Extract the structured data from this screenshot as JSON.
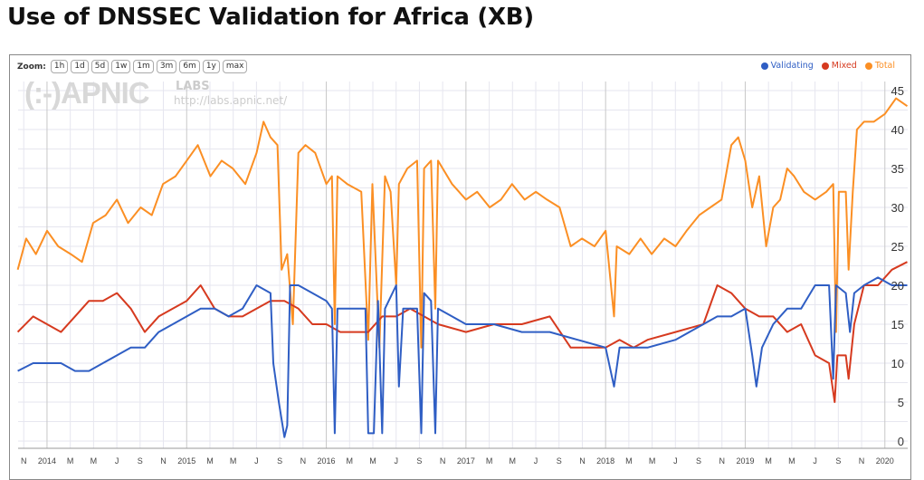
{
  "title": "Use of DNSSEC Validation for Africa (XB)",
  "zoom": {
    "label": "Zoom:",
    "buttons": [
      "1h",
      "1d",
      "5d",
      "1w",
      "1m",
      "3m",
      "6m",
      "1y",
      "max"
    ]
  },
  "watermark": {
    "logo": "(:-)APNIC",
    "labs": "LABS",
    "url": "http://labs.apnic.net/"
  },
  "chart_data": {
    "type": "line",
    "title": "Use of DNSSEC Validation for Africa (XB)",
    "xlabel": "",
    "ylabel": "",
    "xlim": [
      2013.79,
      2020.16
    ],
    "ylim": [
      0,
      46
    ],
    "y_ticks": [
      0,
      5,
      10,
      15,
      20,
      25,
      30,
      35,
      40,
      45
    ],
    "x_tick_start": 2013.833,
    "x_tick_step_years": 0.16667,
    "x_tick_labels": [
      "N",
      "2014",
      "M",
      "M",
      "J",
      "S",
      "N",
      "2015",
      "M",
      "M",
      "J",
      "S",
      "N",
      "2016",
      "M",
      "M",
      "J",
      "S",
      "N",
      "2017",
      "M",
      "M",
      "J",
      "S",
      "N",
      "2018",
      "M",
      "M",
      "J",
      "S",
      "N",
      "2019",
      "M",
      "M",
      "J",
      "S",
      "N",
      "2020"
    ],
    "grid": true,
    "legend_position": "top-right",
    "series": [
      {
        "name": "Validating",
        "color": "#2f5ec4",
        "points": [
          [
            2013.79,
            9
          ],
          [
            2013.9,
            10
          ],
          [
            2014.0,
            10
          ],
          [
            2014.1,
            10
          ],
          [
            2014.2,
            9
          ],
          [
            2014.3,
            9
          ],
          [
            2014.4,
            10
          ],
          [
            2014.5,
            11
          ],
          [
            2014.6,
            12
          ],
          [
            2014.7,
            12
          ],
          [
            2014.8,
            14
          ],
          [
            2014.9,
            15
          ],
          [
            2015.0,
            16
          ],
          [
            2015.1,
            17
          ],
          [
            2015.2,
            17
          ],
          [
            2015.3,
            16
          ],
          [
            2015.4,
            17
          ],
          [
            2015.5,
            20
          ],
          [
            2015.6,
            19
          ],
          [
            2015.62,
            10
          ],
          [
            2015.66,
            5
          ],
          [
            2015.7,
            0.5
          ],
          [
            2015.72,
            2
          ],
          [
            2015.74,
            20
          ],
          [
            2015.8,
            20
          ],
          [
            2015.9,
            19
          ],
          [
            2016.0,
            18
          ],
          [
            2016.04,
            17
          ],
          [
            2016.06,
            1
          ],
          [
            2016.08,
            17
          ],
          [
            2016.2,
            17
          ],
          [
            2016.28,
            17
          ],
          [
            2016.3,
            1
          ],
          [
            2016.34,
            1
          ],
          [
            2016.37,
            18
          ],
          [
            2016.4,
            1
          ],
          [
            2016.42,
            17
          ],
          [
            2016.5,
            20
          ],
          [
            2016.52,
            7
          ],
          [
            2016.55,
            17
          ],
          [
            2016.65,
            17
          ],
          [
            2016.68,
            1
          ],
          [
            2016.7,
            19
          ],
          [
            2016.75,
            18
          ],
          [
            2016.78,
            1
          ],
          [
            2016.8,
            17
          ],
          [
            2016.9,
            16
          ],
          [
            2017.0,
            15
          ],
          [
            2017.2,
            15
          ],
          [
            2017.4,
            14
          ],
          [
            2017.6,
            14
          ],
          [
            2017.8,
            13
          ],
          [
            2018.0,
            12
          ],
          [
            2018.06,
            7
          ],
          [
            2018.1,
            12
          ],
          [
            2018.3,
            12
          ],
          [
            2018.5,
            13
          ],
          [
            2018.7,
            15
          ],
          [
            2018.8,
            16
          ],
          [
            2018.9,
            16
          ],
          [
            2019.0,
            17
          ],
          [
            2019.05,
            11
          ],
          [
            2019.08,
            7
          ],
          [
            2019.12,
            12
          ],
          [
            2019.2,
            15
          ],
          [
            2019.3,
            17
          ],
          [
            2019.4,
            17
          ],
          [
            2019.5,
            20
          ],
          [
            2019.6,
            20
          ],
          [
            2019.63,
            8
          ],
          [
            2019.65,
            20
          ],
          [
            2019.72,
            19
          ],
          [
            2019.75,
            14
          ],
          [
            2019.78,
            19
          ],
          [
            2019.85,
            20
          ],
          [
            2019.95,
            21
          ],
          [
            2020.05,
            20
          ],
          [
            2020.16,
            20
          ]
        ]
      },
      {
        "name": "Mixed",
        "color": "#d63a1f",
        "points": [
          [
            2013.79,
            14
          ],
          [
            2013.9,
            16
          ],
          [
            2014.0,
            15
          ],
          [
            2014.1,
            14
          ],
          [
            2014.2,
            16
          ],
          [
            2014.3,
            18
          ],
          [
            2014.4,
            18
          ],
          [
            2014.5,
            19
          ],
          [
            2014.6,
            17
          ],
          [
            2014.7,
            14
          ],
          [
            2014.8,
            16
          ],
          [
            2014.9,
            17
          ],
          [
            2015.0,
            18
          ],
          [
            2015.1,
            20
          ],
          [
            2015.2,
            17
          ],
          [
            2015.3,
            16
          ],
          [
            2015.4,
            16
          ],
          [
            2015.5,
            17
          ],
          [
            2015.6,
            18
          ],
          [
            2015.7,
            18
          ],
          [
            2015.8,
            17
          ],
          [
            2015.9,
            15
          ],
          [
            2016.0,
            15
          ],
          [
            2016.1,
            14
          ],
          [
            2016.2,
            14
          ],
          [
            2016.3,
            14
          ],
          [
            2016.4,
            16
          ],
          [
            2016.5,
            16
          ],
          [
            2016.6,
            17
          ],
          [
            2016.7,
            16
          ],
          [
            2016.8,
            15
          ],
          [
            2017.0,
            14
          ],
          [
            2017.2,
            15
          ],
          [
            2017.4,
            15
          ],
          [
            2017.6,
            16
          ],
          [
            2017.75,
            12
          ],
          [
            2017.9,
            12
          ],
          [
            2018.0,
            12
          ],
          [
            2018.1,
            13
          ],
          [
            2018.2,
            12
          ],
          [
            2018.3,
            13
          ],
          [
            2018.5,
            14
          ],
          [
            2018.7,
            15
          ],
          [
            2018.8,
            20
          ],
          [
            2018.9,
            19
          ],
          [
            2019.0,
            17
          ],
          [
            2019.1,
            16
          ],
          [
            2019.2,
            16
          ],
          [
            2019.3,
            14
          ],
          [
            2019.4,
            15
          ],
          [
            2019.5,
            11
          ],
          [
            2019.6,
            10
          ],
          [
            2019.64,
            5
          ],
          [
            2019.66,
            11
          ],
          [
            2019.72,
            11
          ],
          [
            2019.74,
            8
          ],
          [
            2019.78,
            15
          ],
          [
            2019.85,
            20
          ],
          [
            2019.95,
            20
          ],
          [
            2020.05,
            22
          ],
          [
            2020.16,
            23
          ]
        ]
      },
      {
        "name": "Total",
        "color": "#fb8f24",
        "points": [
          [
            2013.79,
            22
          ],
          [
            2013.85,
            26
          ],
          [
            2013.92,
            24
          ],
          [
            2014.0,
            27
          ],
          [
            2014.08,
            25
          ],
          [
            2014.17,
            24
          ],
          [
            2014.25,
            23
          ],
          [
            2014.33,
            28
          ],
          [
            2014.42,
            29
          ],
          [
            2014.5,
            31
          ],
          [
            2014.58,
            28
          ],
          [
            2014.67,
            30
          ],
          [
            2014.75,
            29
          ],
          [
            2014.83,
            33
          ],
          [
            2014.92,
            34
          ],
          [
            2015.0,
            36
          ],
          [
            2015.08,
            38
          ],
          [
            2015.17,
            34
          ],
          [
            2015.25,
            36
          ],
          [
            2015.33,
            35
          ],
          [
            2015.42,
            33
          ],
          [
            2015.5,
            37
          ],
          [
            2015.55,
            41
          ],
          [
            2015.6,
            39
          ],
          [
            2015.65,
            38
          ],
          [
            2015.68,
            22
          ],
          [
            2015.72,
            24
          ],
          [
            2015.76,
            15
          ],
          [
            2015.8,
            37
          ],
          [
            2015.85,
            38
          ],
          [
            2015.92,
            37
          ],
          [
            2016.0,
            33
          ],
          [
            2016.04,
            34
          ],
          [
            2016.06,
            15
          ],
          [
            2016.08,
            34
          ],
          [
            2016.15,
            33
          ],
          [
            2016.25,
            32
          ],
          [
            2016.3,
            13
          ],
          [
            2016.33,
            33
          ],
          [
            2016.38,
            12
          ],
          [
            2016.42,
            34
          ],
          [
            2016.46,
            32
          ],
          [
            2016.5,
            20
          ],
          [
            2016.52,
            33
          ],
          [
            2016.58,
            35
          ],
          [
            2016.65,
            36
          ],
          [
            2016.68,
            12
          ],
          [
            2016.7,
            35
          ],
          [
            2016.75,
            36
          ],
          [
            2016.78,
            17
          ],
          [
            2016.8,
            36
          ],
          [
            2016.9,
            33
          ],
          [
            2017.0,
            31
          ],
          [
            2017.08,
            32
          ],
          [
            2017.17,
            30
          ],
          [
            2017.25,
            31
          ],
          [
            2017.33,
            33
          ],
          [
            2017.42,
            31
          ],
          [
            2017.5,
            32
          ],
          [
            2017.58,
            31
          ],
          [
            2017.67,
            30
          ],
          [
            2017.75,
            25
          ],
          [
            2017.83,
            26
          ],
          [
            2017.92,
            25
          ],
          [
            2018.0,
            27
          ],
          [
            2018.06,
            16
          ],
          [
            2018.08,
            25
          ],
          [
            2018.17,
            24
          ],
          [
            2018.25,
            26
          ],
          [
            2018.33,
            24
          ],
          [
            2018.42,
            26
          ],
          [
            2018.5,
            25
          ],
          [
            2018.58,
            27
          ],
          [
            2018.67,
            29
          ],
          [
            2018.75,
            30
          ],
          [
            2018.83,
            31
          ],
          [
            2018.9,
            38
          ],
          [
            2018.95,
            39
          ],
          [
            2019.0,
            36
          ],
          [
            2019.05,
            30
          ],
          [
            2019.1,
            34
          ],
          [
            2019.15,
            25
          ],
          [
            2019.2,
            30
          ],
          [
            2019.25,
            31
          ],
          [
            2019.3,
            35
          ],
          [
            2019.35,
            34
          ],
          [
            2019.42,
            32
          ],
          [
            2019.5,
            31
          ],
          [
            2019.58,
            32
          ],
          [
            2019.63,
            33
          ],
          [
            2019.65,
            14
          ],
          [
            2019.67,
            32
          ],
          [
            2019.72,
            32
          ],
          [
            2019.74,
            22
          ],
          [
            2019.77,
            32
          ],
          [
            2019.8,
            40
          ],
          [
            2019.85,
            41
          ],
          [
            2019.92,
            41
          ],
          [
            2020.0,
            42
          ],
          [
            2020.08,
            44
          ],
          [
            2020.16,
            43
          ]
        ]
      }
    ]
  }
}
